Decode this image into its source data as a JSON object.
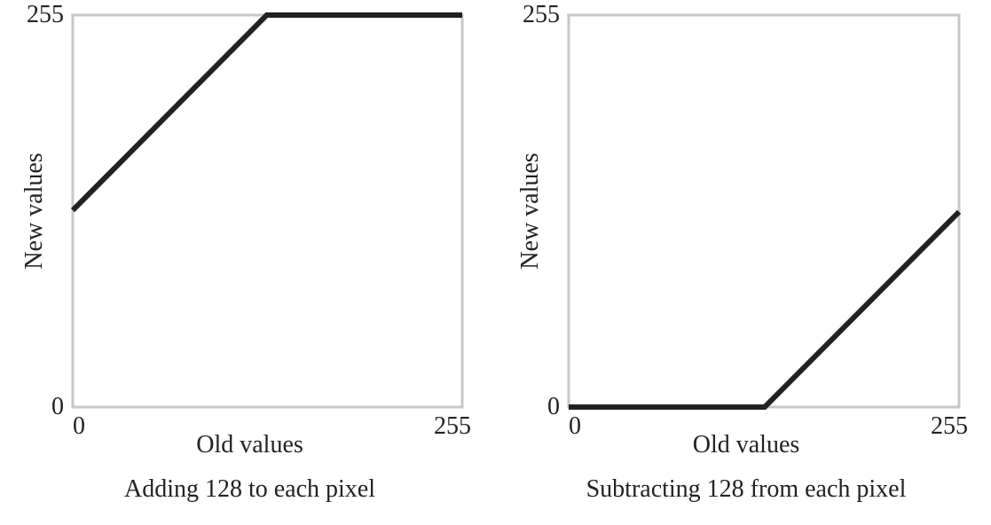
{
  "chart_data": [
    {
      "type": "line",
      "title": "Adding 128 to each pixel",
      "xlabel": "Old values",
      "ylabel": "New values",
      "x": [
        0,
        127,
        255
      ],
      "values": [
        128,
        255,
        255
      ],
      "color": "#222222",
      "xlim": [
        0,
        255
      ],
      "ylim": [
        0,
        255
      ],
      "xticks": [
        0,
        255
      ],
      "yticks": [
        0,
        255
      ]
    },
    {
      "type": "line",
      "title": "Subtracting 128 from each pixel",
      "xlabel": "Old values",
      "ylabel": "New values",
      "x": [
        0,
        128,
        255
      ],
      "values": [
        0,
        0,
        127
      ],
      "color": "#222222",
      "xlim": [
        0,
        255
      ],
      "ylim": [
        0,
        255
      ],
      "xticks": [
        0,
        255
      ],
      "yticks": [
        0,
        255
      ]
    }
  ]
}
